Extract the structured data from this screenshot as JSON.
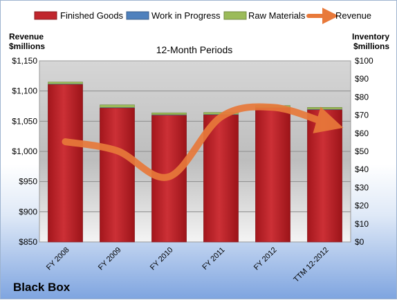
{
  "chart_data": {
    "type": "bar",
    "title": "12-Month Periods",
    "company": "Black Box",
    "categories": [
      "FY 2008",
      "FY 2009",
      "FY 2010",
      "FY 2011",
      "FY 2012",
      "TTM 12-2012"
    ],
    "series": [
      {
        "name": "Finished Goods",
        "axis": "right",
        "kind": "bar",
        "color": "#c0262d",
        "values": [
          87.0,
          74.0,
          70.0,
          70.2,
          74.0,
          73.0
        ]
      },
      {
        "name": "Work in Progress",
        "axis": "right",
        "kind": "bar",
        "color": "#4f81bd",
        "values": [
          0.3,
          0.3,
          0.3,
          0.3,
          0.3,
          0.3
        ]
      },
      {
        "name": "Raw Materials",
        "axis": "right",
        "kind": "bar",
        "color": "#9bbb59",
        "values": [
          1.0,
          1.4,
          1.0,
          1.0,
          1.0,
          1.0
        ]
      },
      {
        "name": "Revenue",
        "axis": "left",
        "kind": "line",
        "color": "#e8793a",
        "values": [
          1016,
          1001,
          958,
          1057,
          1073,
          1048
        ]
      }
    ],
    "ylabel_left": "Revenue $millions",
    "ylabel_right": "Inventory $millions",
    "ylim_left": [
      850,
      1150
    ],
    "ylim_right": [
      0,
      100
    ],
    "yticks_left": [
      "$1,150",
      "$1,100",
      "$1,050",
      "$1,000",
      "$950",
      "$900",
      "$850"
    ],
    "yticks_right": [
      "$100",
      "$90",
      "$80",
      "$70",
      "$60",
      "$50",
      "$40",
      "$30",
      "$20",
      "$10",
      "$0"
    ],
    "grid": true,
    "legend_position": "top"
  }
}
